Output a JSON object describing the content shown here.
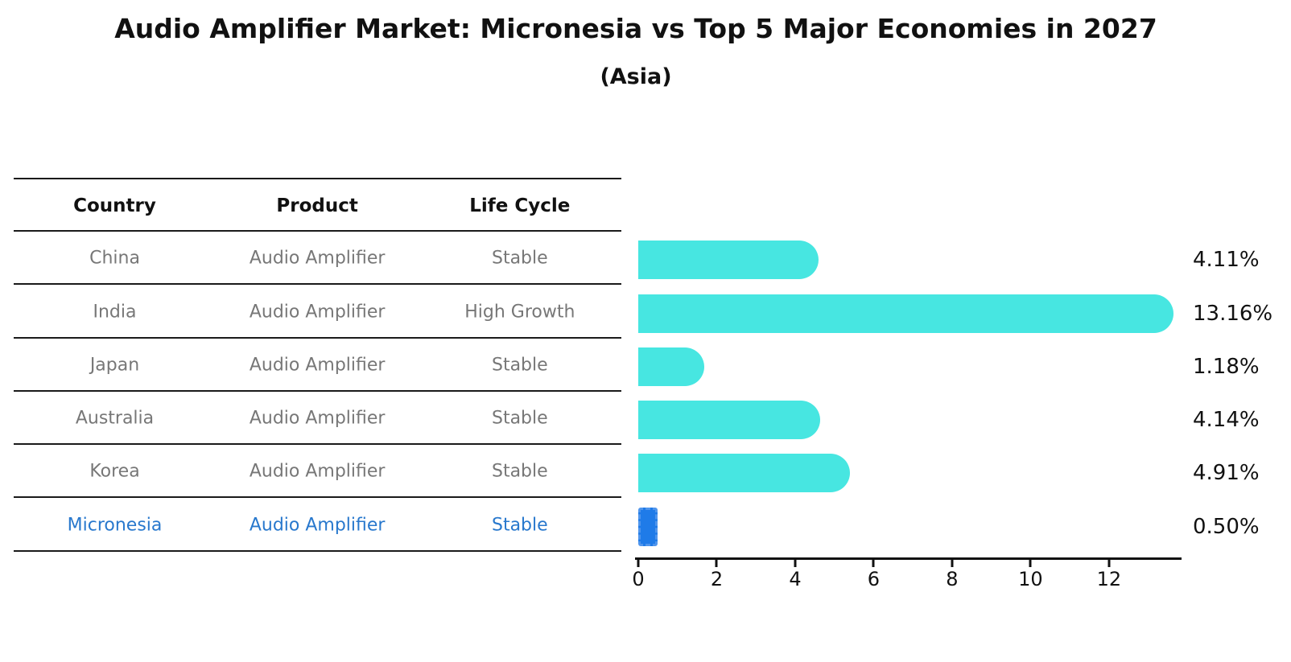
{
  "title": "Audio Amplifier Market: Micronesia vs Top 5 Major Economies in 2027",
  "subtitle": "(Asia)",
  "table": {
    "headers": [
      "Country",
      "Product",
      "Life Cycle"
    ],
    "rows": [
      {
        "country": "China",
        "product": "Audio Amplifier",
        "life_cycle": "Stable",
        "highlight": false
      },
      {
        "country": "India",
        "product": "Audio Amplifier",
        "life_cycle": "High Growth",
        "highlight": false
      },
      {
        "country": "Japan",
        "product": "Audio Amplifier",
        "life_cycle": "Stable",
        "highlight": false
      },
      {
        "country": "Australia",
        "product": "Audio Amplifier",
        "life_cycle": "Stable",
        "highlight": false
      },
      {
        "country": "Korea",
        "product": "Audio Amplifier",
        "life_cycle": "Stable",
        "highlight": false
      },
      {
        "country": "Micronesia",
        "product": "Audio Amplifier",
        "life_cycle": "Stable",
        "highlight": true
      }
    ]
  },
  "chart_data": {
    "type": "bar",
    "orientation": "horizontal",
    "title": "Audio Amplifier Market: Micronesia vs Top 5 Major Economies in 2027",
    "subtitle": "(Asia)",
    "categories": [
      "China",
      "India",
      "Japan",
      "Australia",
      "Korea",
      "Micronesia"
    ],
    "values": [
      4.11,
      13.16,
      1.18,
      4.14,
      4.91,
      0.5
    ],
    "value_labels": [
      "4.11%",
      "13.16%",
      "1.18%",
      "4.14%",
      "4.91%",
      "0.50%"
    ],
    "highlight_index": 5,
    "x_ticks": [
      0,
      2,
      4,
      6,
      8,
      10,
      12
    ],
    "xlim": [
      0,
      13.85
    ],
    "grid": false,
    "legend": "none",
    "bar_color": "#47e6e1",
    "highlight_bar_color": "#1f7be8",
    "highlight_text_color": "#2878cd",
    "row_text_color": "#777777",
    "axis_color": "#111111"
  }
}
